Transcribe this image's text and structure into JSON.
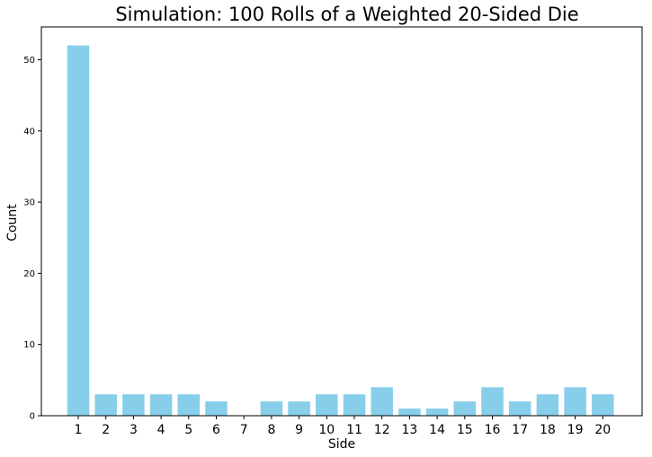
{
  "chart_data": {
    "type": "bar",
    "title": "Simulation: 100 Rolls of a Weighted 20-Sided Die",
    "xlabel": "Side",
    "ylabel": "Count",
    "categories": [
      "1",
      "2",
      "3",
      "4",
      "5",
      "6",
      "7",
      "8",
      "9",
      "10",
      "11",
      "12",
      "13",
      "14",
      "15",
      "16",
      "17",
      "18",
      "19",
      "20"
    ],
    "values": [
      52,
      3,
      3,
      3,
      3,
      2,
      0,
      2,
      2,
      3,
      3,
      4,
      1,
      1,
      2,
      4,
      2,
      3,
      4,
      3
    ],
    "ylim": [
      0,
      54.6
    ],
    "yticks": [
      0,
      10,
      20,
      30,
      40,
      50
    ],
    "grid": false,
    "bar_color": "#87ceeb",
    "axis_color": "#000000"
  }
}
